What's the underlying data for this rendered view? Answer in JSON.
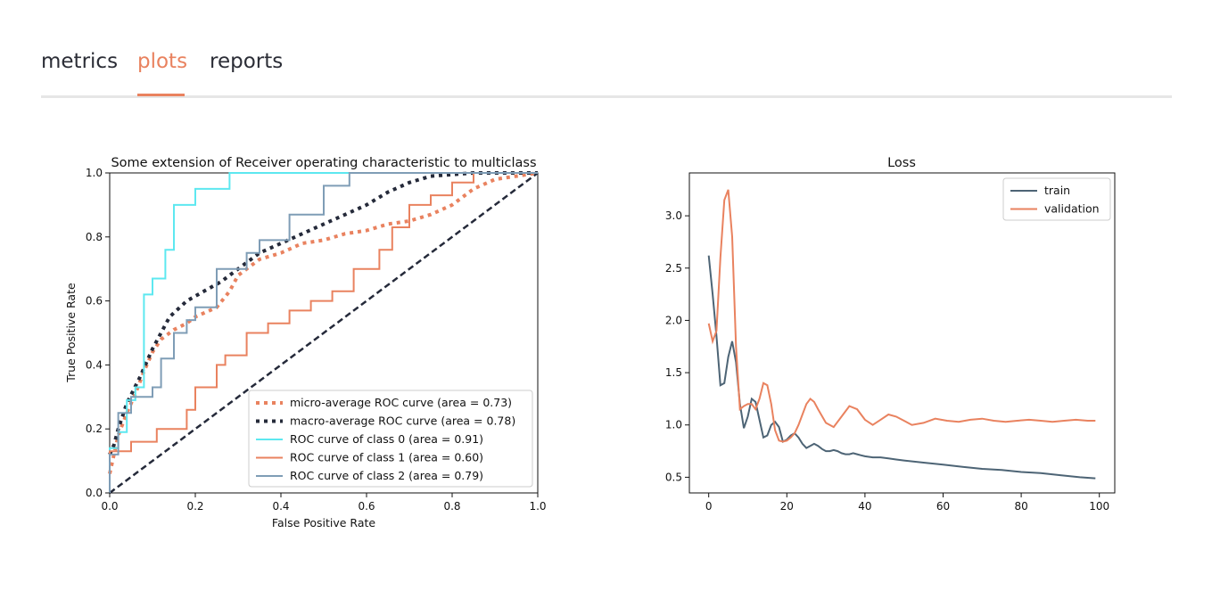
{
  "tabs": [
    {
      "label": "metrics",
      "active": false
    },
    {
      "label": "plots",
      "active": true
    },
    {
      "label": "reports",
      "active": false
    }
  ],
  "colors": {
    "accent": "#e9825f",
    "cyan": "#5de8f0",
    "steel": "#7f9db6",
    "navy": "#252a3a",
    "train": "#4d6475",
    "validation": "#e9825f"
  },
  "chart_data": [
    {
      "type": "line",
      "title": "Some extension of Receiver operating characteristic to multiclass",
      "xlabel": "False Positive Rate",
      "ylabel": "True Positive Rate",
      "xlim": [
        0.0,
        1.0
      ],
      "ylim": [
        0.0,
        1.0
      ],
      "xticks": [
        "0.0",
        "0.2",
        "0.4",
        "0.6",
        "0.8",
        "1.0"
      ],
      "yticks": [
        "0.0",
        "0.2",
        "0.4",
        "0.6",
        "0.8",
        "1.0"
      ],
      "grid": false,
      "legend": "lower-right",
      "series": [
        {
          "name": "micro-average ROC curve (area = 0.73)",
          "style": "dotted",
          "color": "#e9825f",
          "x": [
            0,
            0.01,
            0.02,
            0.04,
            0.06,
            0.08,
            0.1,
            0.12,
            0.15,
            0.18,
            0.2,
            0.25,
            0.28,
            0.3,
            0.35,
            0.4,
            0.45,
            0.5,
            0.55,
            0.6,
            0.65,
            0.7,
            0.75,
            0.8,
            0.85,
            0.9,
            0.95,
            1.0
          ],
          "y": [
            0.06,
            0.12,
            0.18,
            0.25,
            0.31,
            0.38,
            0.44,
            0.48,
            0.51,
            0.53,
            0.55,
            0.58,
            0.63,
            0.68,
            0.73,
            0.75,
            0.78,
            0.79,
            0.81,
            0.82,
            0.84,
            0.85,
            0.87,
            0.9,
            0.95,
            0.98,
            0.99,
            1.0
          ]
        },
        {
          "name": "macro-average ROC curve (area = 0.78)",
          "style": "dotted",
          "color": "#252a3a",
          "x": [
            0,
            0.01,
            0.02,
            0.04,
            0.07,
            0.1,
            0.14,
            0.18,
            0.22,
            0.26,
            0.3,
            0.35,
            0.4,
            0.45,
            0.5,
            0.55,
            0.6,
            0.65,
            0.7,
            0.75,
            0.8,
            0.85,
            0.9,
            0.95,
            1.0
          ],
          "y": [
            0.12,
            0.15,
            0.2,
            0.28,
            0.36,
            0.45,
            0.55,
            0.6,
            0.63,
            0.66,
            0.7,
            0.75,
            0.78,
            0.81,
            0.84,
            0.87,
            0.9,
            0.94,
            0.97,
            0.99,
            0.995,
            1.0,
            1.0,
            1.0,
            1.0
          ]
        },
        {
          "name": "ROC curve of class 0 (area = 0.91)",
          "style": "step",
          "color": "#5de8f0",
          "x": [
            0,
            0.0,
            0.02,
            0.02,
            0.04,
            0.04,
            0.06,
            0.06,
            0.08,
            0.08,
            0.1,
            0.1,
            0.13,
            0.13,
            0.15,
            0.15,
            0.2,
            0.2,
            0.28,
            0.28,
            1.0
          ],
          "y": [
            0,
            0.14,
            0.14,
            0.19,
            0.19,
            0.29,
            0.29,
            0.33,
            0.33,
            0.62,
            0.62,
            0.67,
            0.67,
            0.76,
            0.76,
            0.9,
            0.9,
            0.95,
            0.95,
            1.0,
            1.0
          ]
        },
        {
          "name": "ROC curve of class 1 (area = 0.60)",
          "style": "step",
          "color": "#e9825f",
          "x": [
            0,
            0.0,
            0.05,
            0.05,
            0.11,
            0.11,
            0.18,
            0.18,
            0.2,
            0.2,
            0.25,
            0.25,
            0.27,
            0.27,
            0.32,
            0.32,
            0.37,
            0.37,
            0.42,
            0.42,
            0.47,
            0.47,
            0.52,
            0.52,
            0.57,
            0.57,
            0.63,
            0.63,
            0.66,
            0.66,
            0.7,
            0.7,
            0.75,
            0.75,
            0.8,
            0.8,
            0.85,
            0.85,
            1.0
          ],
          "y": [
            0,
            0.13,
            0.13,
            0.16,
            0.16,
            0.2,
            0.2,
            0.26,
            0.26,
            0.33,
            0.33,
            0.4,
            0.4,
            0.43,
            0.43,
            0.5,
            0.5,
            0.53,
            0.53,
            0.57,
            0.57,
            0.6,
            0.6,
            0.63,
            0.63,
            0.7,
            0.7,
            0.76,
            0.76,
            0.83,
            0.83,
            0.9,
            0.9,
            0.93,
            0.93,
            0.97,
            0.97,
            1.0,
            1.0
          ]
        },
        {
          "name": "ROC curve of class 2 (area = 0.79)",
          "style": "step",
          "color": "#7f9db6",
          "x": [
            0,
            0.0,
            0.02,
            0.02,
            0.05,
            0.05,
            0.1,
            0.1,
            0.12,
            0.12,
            0.15,
            0.15,
            0.18,
            0.18,
            0.2,
            0.2,
            0.25,
            0.25,
            0.32,
            0.32,
            0.35,
            0.35,
            0.42,
            0.42,
            0.5,
            0.5,
            0.56,
            0.56,
            0.75,
            0.75,
            0.85,
            0.85,
            1.0
          ],
          "y": [
            0,
            0.12,
            0.12,
            0.25,
            0.25,
            0.3,
            0.3,
            0.33,
            0.33,
            0.42,
            0.42,
            0.5,
            0.5,
            0.54,
            0.54,
            0.58,
            0.58,
            0.7,
            0.7,
            0.75,
            0.75,
            0.79,
            0.79,
            0.87,
            0.87,
            0.96,
            0.96,
            1.0,
            1.0,
            1.0,
            1.0,
            1.0,
            1.0
          ]
        }
      ],
      "reference_line": {
        "x": [
          0,
          1
        ],
        "y": [
          0,
          1
        ],
        "style": "dashed",
        "color": "#252a3a"
      }
    },
    {
      "type": "line",
      "title": "Loss",
      "xlabel": "",
      "ylabel": "",
      "xlim": [
        -4.95,
        103.95
      ],
      "ylim": [
        0.35,
        3.41
      ],
      "xticks": [
        "0",
        "20",
        "40",
        "60",
        "80",
        "100"
      ],
      "yticks": [
        "0.5",
        "1.0",
        "1.5",
        "2.0",
        "2.5",
        "3.0"
      ],
      "grid": false,
      "legend": "top-right",
      "series": [
        {
          "name": "train",
          "color": "#4d6475",
          "x": [
            0,
            1,
            2,
            3,
            4,
            5,
            6,
            7,
            8,
            9,
            10,
            11,
            12,
            13,
            14,
            15,
            16,
            17,
            18,
            19,
            20,
            21,
            22,
            23,
            24,
            25,
            26,
            27,
            28,
            29,
            30,
            31,
            32,
            33,
            34,
            35,
            36,
            37,
            38,
            39,
            40,
            42,
            44,
            46,
            48,
            50,
            55,
            60,
            65,
            70,
            75,
            80,
            85,
            90,
            95,
            99
          ],
          "y": [
            2.62,
            2.25,
            1.85,
            1.38,
            1.4,
            1.65,
            1.8,
            1.6,
            1.2,
            0.97,
            1.08,
            1.25,
            1.22,
            1.05,
            0.88,
            0.9,
            1.0,
            1.03,
            0.98,
            0.84,
            0.86,
            0.9,
            0.92,
            0.88,
            0.82,
            0.78,
            0.8,
            0.82,
            0.8,
            0.77,
            0.75,
            0.75,
            0.76,
            0.75,
            0.73,
            0.72,
            0.72,
            0.73,
            0.72,
            0.71,
            0.7,
            0.69,
            0.69,
            0.68,
            0.67,
            0.66,
            0.64,
            0.62,
            0.6,
            0.58,
            0.57,
            0.55,
            0.54,
            0.52,
            0.5,
            0.49
          ]
        },
        {
          "name": "validation",
          "color": "#e9825f",
          "x": [
            0,
            1,
            2,
            3,
            4,
            5,
            6,
            7,
            8,
            9,
            10,
            11,
            12,
            13,
            14,
            15,
            16,
            17,
            18,
            19,
            20,
            21,
            22,
            23,
            24,
            25,
            26,
            27,
            28,
            30,
            32,
            34,
            36,
            38,
            40,
            42,
            44,
            46,
            48,
            50,
            52,
            55,
            58,
            61,
            64,
            67,
            70,
            73,
            76,
            79,
            82,
            85,
            88,
            91,
            94,
            97,
            99
          ],
          "y": [
            1.97,
            1.8,
            1.9,
            2.6,
            3.15,
            3.25,
            2.8,
            1.75,
            1.15,
            1.18,
            1.2,
            1.2,
            1.15,
            1.25,
            1.4,
            1.38,
            1.2,
            0.95,
            0.85,
            0.84,
            0.85,
            0.88,
            0.92,
            1.0,
            1.1,
            1.2,
            1.25,
            1.22,
            1.15,
            1.02,
            0.98,
            1.08,
            1.18,
            1.15,
            1.05,
            1.0,
            1.05,
            1.1,
            1.08,
            1.04,
            1.0,
            1.02,
            1.06,
            1.04,
            1.03,
            1.05,
            1.06,
            1.04,
            1.03,
            1.04,
            1.05,
            1.04,
            1.03,
            1.04,
            1.05,
            1.04,
            1.04
          ]
        }
      ]
    }
  ]
}
